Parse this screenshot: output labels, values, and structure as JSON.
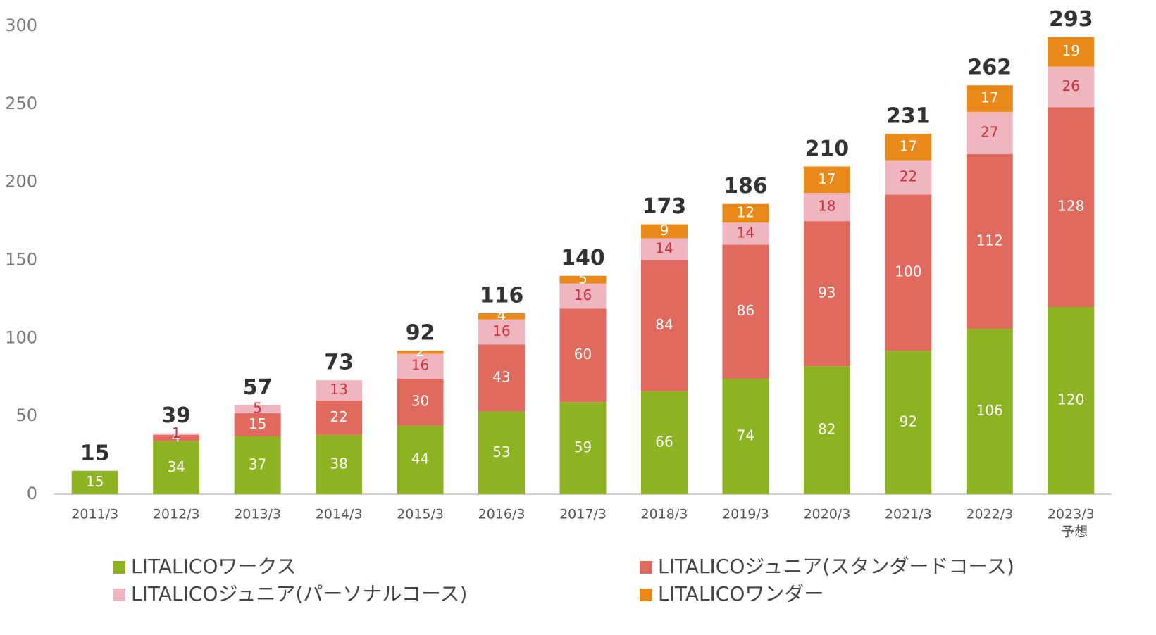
{
  "chart_data": {
    "type": "stacked_bar",
    "categories": [
      "2011/3",
      "2012/3",
      "2013/3",
      "2014/3",
      "2015/3",
      "2016/3",
      "2017/3",
      "2018/3",
      "2019/3",
      "2020/3",
      "2021/3",
      "2022/3",
      "2023/3"
    ],
    "category_note": "予想",
    "series": [
      {
        "name": "LITALICOワークス",
        "color": "#8db222",
        "label_color": "#ffffff",
        "values": [
          15,
          34,
          37,
          38,
          44,
          53,
          59,
          66,
          74,
          82,
          92,
          106,
          120
        ]
      },
      {
        "name": "LITALICOジュニア(スタンダードコース)",
        "color": "#e06a5e",
        "label_color": "#ffffff",
        "values": [
          null,
          4,
          15,
          22,
          30,
          43,
          60,
          84,
          86,
          93,
          100,
          112,
          128
        ]
      },
      {
        "name": "LITALICOジュニア(パーソナルコース)",
        "color": "#efb6c0",
        "label_color": "#d0303a",
        "values": [
          null,
          1,
          5,
          13,
          16,
          16,
          16,
          14,
          14,
          18,
          22,
          27,
          26
        ]
      },
      {
        "name": "LITALICOワンダー",
        "color": "#e8891a",
        "label_color": "#ffffff",
        "values": [
          null,
          null,
          null,
          null,
          2,
          4,
          5,
          9,
          12,
          17,
          17,
          17,
          19
        ]
      }
    ],
    "totals": [
      15,
      39,
      57,
      73,
      92,
      116,
      140,
      173,
      186,
      210,
      231,
      262,
      293
    ],
    "ylim": [
      0,
      300
    ],
    "yticks": [
      0,
      50,
      100,
      150,
      200,
      250,
      300
    ],
    "grid": false
  }
}
